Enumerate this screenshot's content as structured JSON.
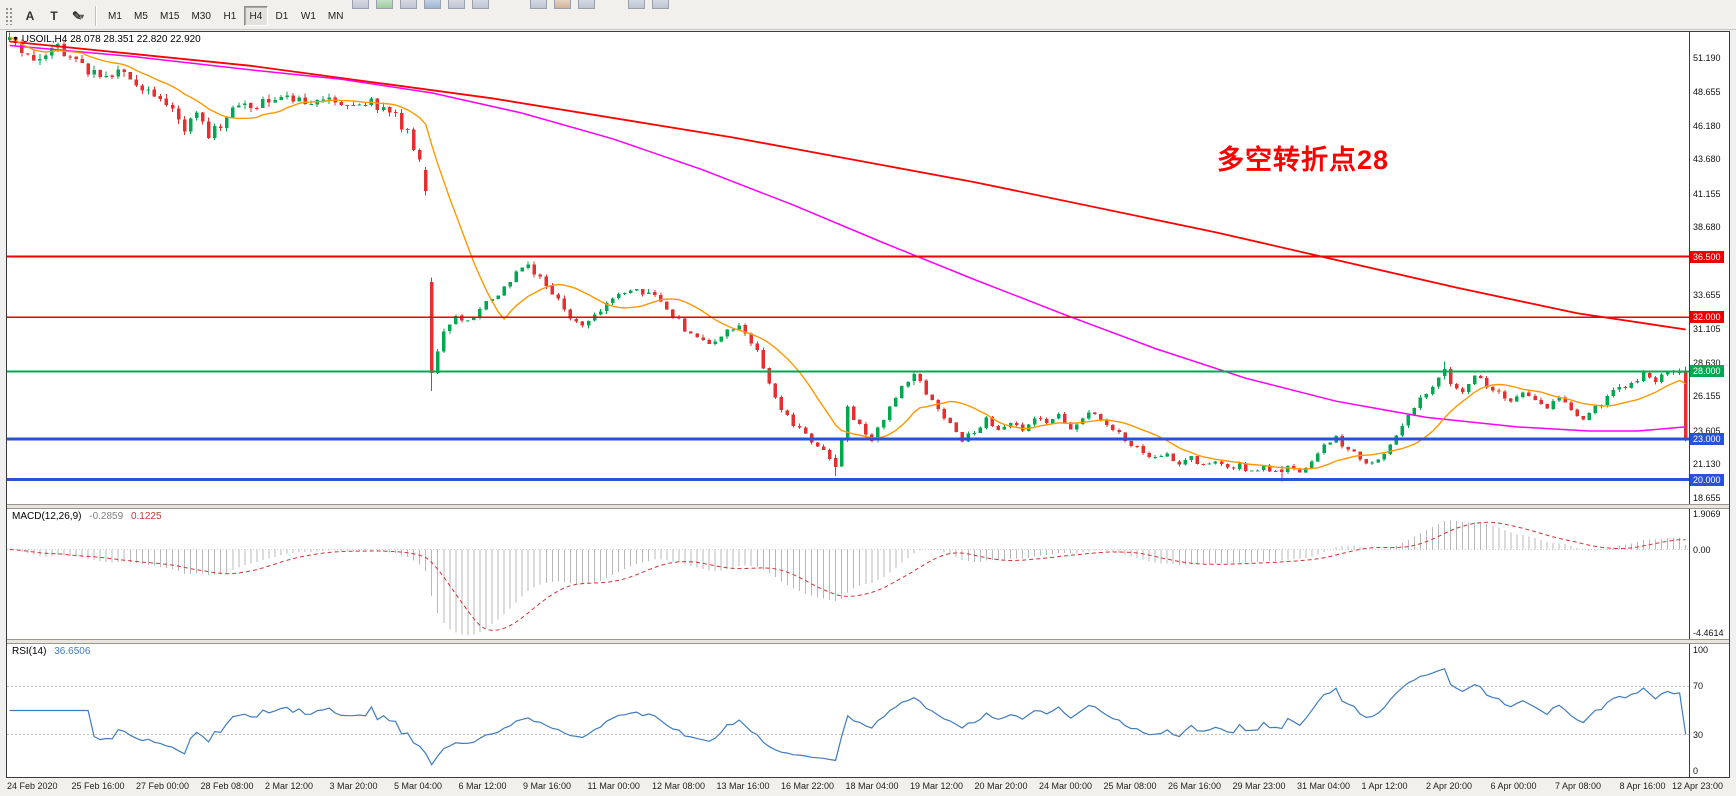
{
  "toolbar": {
    "timeframes": [
      "M1",
      "M5",
      "M15",
      "M30",
      "H1",
      "H4",
      "D1",
      "W1",
      "MN"
    ],
    "active_timeframe": "H4",
    "icons": {
      "cursor_glyph": "A",
      "text_glyph": "T",
      "draw_glyph": "✎",
      "dropdown_glyph": "▾"
    }
  },
  "chart": {
    "collapse_glyph": "▼",
    "symbol_line": "USOIL,H4  28.078 28.351 22.820 22.920",
    "annotation": {
      "text": "多空转折点28",
      "color": "#ff0000"
    },
    "colors": {
      "up": "#00a94f",
      "down": "#e63030",
      "ma_fast": "#ff9800",
      "ma_mid": "#ff00ff",
      "ma_slow": "#ff0000",
      "macd_hist": "#b8b8b8",
      "macd_signal": "#d23535",
      "rsi_line": "#3f7cc0",
      "level_red": "#ee0000",
      "level_green": "#00a94f",
      "level_blue": "#2a52d8"
    }
  },
  "macd": {
    "label": "MACD(12,26,9)",
    "value_main": "-0.2859",
    "value_signal": "0.1225"
  },
  "rsi": {
    "label": "RSI(14)",
    "value": "36.6506"
  },
  "chart_data": {
    "type": "candlestick",
    "symbol": "USOIL",
    "period": "H4",
    "current_bar": {
      "open": 28.078,
      "high": 28.351,
      "low": 22.82,
      "close": 22.92
    },
    "candle_count": 279,
    "y_range": [
      18.2,
      53.1
    ],
    "price_tick_labels": [
      {
        "t": "51.190",
        "v": 51.19
      },
      {
        "t": "48.655",
        "v": 48.655
      },
      {
        "t": "46.180",
        "v": 46.18
      },
      {
        "t": "43.680",
        "v": 43.68
      },
      {
        "t": "41.155",
        "v": 41.155
      },
      {
        "t": "38.680",
        "v": 38.68
      },
      {
        "t": "33.655",
        "v": 33.655
      },
      {
        "t": "31.105",
        "v": 31.105
      },
      {
        "t": "28.630",
        "v": 28.63
      },
      {
        "t": "26.155",
        "v": 26.155
      },
      {
        "t": "23.605",
        "v": 23.605
      },
      {
        "t": "21.130",
        "v": 21.13
      },
      {
        "t": "18.655",
        "v": 18.655
      }
    ],
    "levels": [
      {
        "price": 36.5,
        "label": "36.500",
        "color": "#ee0000",
        "width": 1.6
      },
      {
        "price": 32.0,
        "label": "32.000",
        "color": "#ee0000",
        "width": 1.6
      },
      {
        "price": 28.0,
        "label": "28.000",
        "color": "#00a94f",
        "width": 1.6
      },
      {
        "price": 23.0,
        "label": "23.000",
        "color": "#2a52d8",
        "width": 3
      },
      {
        "price": 20.0,
        "label": "20.000",
        "color": "#2a52d8",
        "width": 3
      }
    ],
    "close_waypoints": [
      [
        0,
        52.3
      ],
      [
        4,
        51.4
      ],
      [
        8,
        52.0
      ],
      [
        12,
        50.6
      ],
      [
        15,
        49.6
      ],
      [
        18,
        50.3
      ],
      [
        22,
        49.0
      ],
      [
        26,
        47.6
      ],
      [
        29,
        45.9
      ],
      [
        31,
        46.8
      ],
      [
        33,
        45.4
      ],
      [
        36,
        46.9
      ],
      [
        40,
        47.8
      ],
      [
        45,
        48.3
      ],
      [
        50,
        48.0
      ],
      [
        53,
        48.5
      ],
      [
        57,
        47.5
      ],
      [
        60,
        48.0
      ],
      [
        64,
        46.8
      ],
      [
        66,
        45.7
      ],
      [
        68,
        43.6
      ],
      [
        69,
        41.4
      ],
      [
        70,
        27.9
      ],
      [
        72,
        30.8
      ],
      [
        74,
        32.3
      ],
      [
        76,
        31.6
      ],
      [
        78,
        32.8
      ],
      [
        80,
        33.4
      ],
      [
        83,
        34.8
      ],
      [
        86,
        35.7
      ],
      [
        88,
        34.9
      ],
      [
        90,
        33.8
      ],
      [
        93,
        32.0
      ],
      [
        95,
        31.2
      ],
      [
        98,
        32.6
      ],
      [
        101,
        33.6
      ],
      [
        104,
        34.0
      ],
      [
        107,
        33.4
      ],
      [
        110,
        32.2
      ],
      [
        113,
        30.6
      ],
      [
        116,
        29.8
      ],
      [
        119,
        31.0
      ],
      [
        121,
        31.6
      ],
      [
        124,
        29.4
      ],
      [
        126,
        27.0
      ],
      [
        128,
        25.2
      ],
      [
        130,
        24.2
      ],
      [
        132,
        23.3
      ],
      [
        134,
        22.6
      ],
      [
        136,
        21.6
      ],
      [
        137,
        20.9
      ],
      [
        138,
        23.0
      ],
      [
        139,
        25.2
      ],
      [
        141,
        24.1
      ],
      [
        143,
        23.0
      ],
      [
        145,
        24.6
      ],
      [
        147,
        26.2
      ],
      [
        150,
        27.8
      ],
      [
        152,
        26.4
      ],
      [
        154,
        25.3
      ],
      [
        156,
        24.1
      ],
      [
        158,
        22.9
      ],
      [
        160,
        23.6
      ],
      [
        162,
        24.4
      ],
      [
        164,
        23.8
      ],
      [
        166,
        24.3
      ],
      [
        168,
        23.6
      ],
      [
        170,
        24.6
      ],
      [
        172,
        24.1
      ],
      [
        174,
        24.7
      ],
      [
        176,
        23.9
      ],
      [
        178,
        24.5
      ],
      [
        180,
        25.0
      ],
      [
        182,
        24.2
      ],
      [
        184,
        23.4
      ],
      [
        186,
        22.7
      ],
      [
        188,
        22.1
      ],
      [
        190,
        21.5
      ],
      [
        192,
        21.9
      ],
      [
        194,
        21.2
      ],
      [
        196,
        21.7
      ],
      [
        198,
        21.0
      ],
      [
        200,
        21.4
      ],
      [
        202,
        20.8
      ],
      [
        204,
        21.1
      ],
      [
        206,
        20.5
      ],
      [
        208,
        20.9
      ],
      [
        210,
        20.6
      ],
      [
        212,
        21.0
      ],
      [
        214,
        20.7
      ],
      [
        216,
        21.3
      ],
      [
        218,
        22.4
      ],
      [
        220,
        23.1
      ],
      [
        222,
        22.2
      ],
      [
        224,
        21.6
      ],
      [
        226,
        21.1
      ],
      [
        228,
        22.0
      ],
      [
        230,
        23.4
      ],
      [
        232,
        24.8
      ],
      [
        234,
        26.0
      ],
      [
        236,
        27.0
      ],
      [
        238,
        28.2
      ],
      [
        239,
        27.2
      ],
      [
        241,
        26.7
      ],
      [
        243,
        27.9
      ],
      [
        245,
        26.9
      ],
      [
        247,
        26.3
      ],
      [
        249,
        25.8
      ],
      [
        251,
        26.4
      ],
      [
        253,
        25.9
      ],
      [
        255,
        25.4
      ],
      [
        257,
        26.0
      ],
      [
        259,
        25.1
      ],
      [
        261,
        24.6
      ],
      [
        263,
        25.3
      ],
      [
        265,
        26.1
      ],
      [
        267,
        26.8
      ],
      [
        269,
        27.2
      ],
      [
        271,
        27.8
      ],
      [
        273,
        27.4
      ],
      [
        275,
        27.9
      ],
      [
        277,
        28.1
      ],
      [
        278,
        22.92
      ]
    ],
    "overrides": {
      "69": [
        42.9,
        43.1,
        41.0,
        41.35
      ],
      "70": [
        34.62,
        34.95,
        26.55,
        27.9
      ],
      "137": [
        21.6,
        21.85,
        20.28,
        20.95
      ],
      "150": [
        27.3,
        28.05,
        27.0,
        27.8
      ],
      "211": [
        20.75,
        21.0,
        19.86,
        20.55
      ],
      "238": [
        27.65,
        28.75,
        27.4,
        28.2
      ],
      "278": [
        28.078,
        28.351,
        22.82,
        22.92
      ]
    },
    "ma_fast_period": 13,
    "ma_magenta_waypoints": [
      [
        0,
        52.1
      ],
      [
        20,
        51.3
      ],
      [
        40,
        50.3
      ],
      [
        55,
        49.6
      ],
      [
        70,
        48.6
      ],
      [
        85,
        47.1
      ],
      [
        100,
        45.2
      ],
      [
        115,
        42.9
      ],
      [
        130,
        40.3
      ],
      [
        145,
        37.5
      ],
      [
        160,
        34.8
      ],
      [
        175,
        32.2
      ],
      [
        190,
        29.7
      ],
      [
        205,
        27.5
      ],
      [
        220,
        25.8
      ],
      [
        235,
        24.6
      ],
      [
        250,
        23.9
      ],
      [
        262,
        23.6
      ],
      [
        270,
        23.6
      ],
      [
        278,
        23.9
      ]
    ],
    "ma_slow_waypoints": [
      [
        0,
        52.4
      ],
      [
        40,
        50.6
      ],
      [
        80,
        48.2
      ],
      [
        120,
        45.3
      ],
      [
        160,
        42.0
      ],
      [
        200,
        38.3
      ],
      [
        240,
        34.2
      ],
      [
        260,
        32.3
      ],
      [
        278,
        31.1
      ]
    ],
    "macd_range": [
      -4.4614,
      1.9069
    ],
    "macd_axis": [
      {
        "t": "1.9069",
        "v": 1.9069
      },
      {
        "t": "0.00",
        "v": 0
      },
      {
        "t": "-4.4614",
        "v": -4.4614
      }
    ],
    "rsi_axis": [
      {
        "t": "100",
        "v": 100
      },
      {
        "t": "70",
        "v": 70
      },
      {
        "t": "30",
        "v": 30
      },
      {
        "t": "0",
        "v": 0
      }
    ],
    "rsi_levels": [
      70,
      30
    ],
    "time_labels": [
      "24 Feb 2020",
      "25 Feb 16:00",
      "27 Feb 00:00",
      "28 Feb 08:00",
      "2 Mar 12:00",
      "3 Mar 20:00",
      "5 Mar 04:00",
      "6 Mar 12:00",
      "9 Mar 16:00",
      "11 Mar 00:00",
      "12 Mar 08:00",
      "13 Mar 16:00",
      "16 Mar 22:00",
      "18 Mar 04:00",
      "19 Mar 12:00",
      "20 Mar 20:00",
      "24 Mar 00:00",
      "25 Mar 08:00",
      "26 Mar 16:00",
      "29 Mar 23:00",
      "31 Mar 04:00",
      "1 Apr 12:00",
      "2 Apr 20:00",
      "6 Apr 00:00",
      "7 Apr 08:00",
      "8 Apr 16:00",
      "12 Apr 23:00"
    ]
  }
}
